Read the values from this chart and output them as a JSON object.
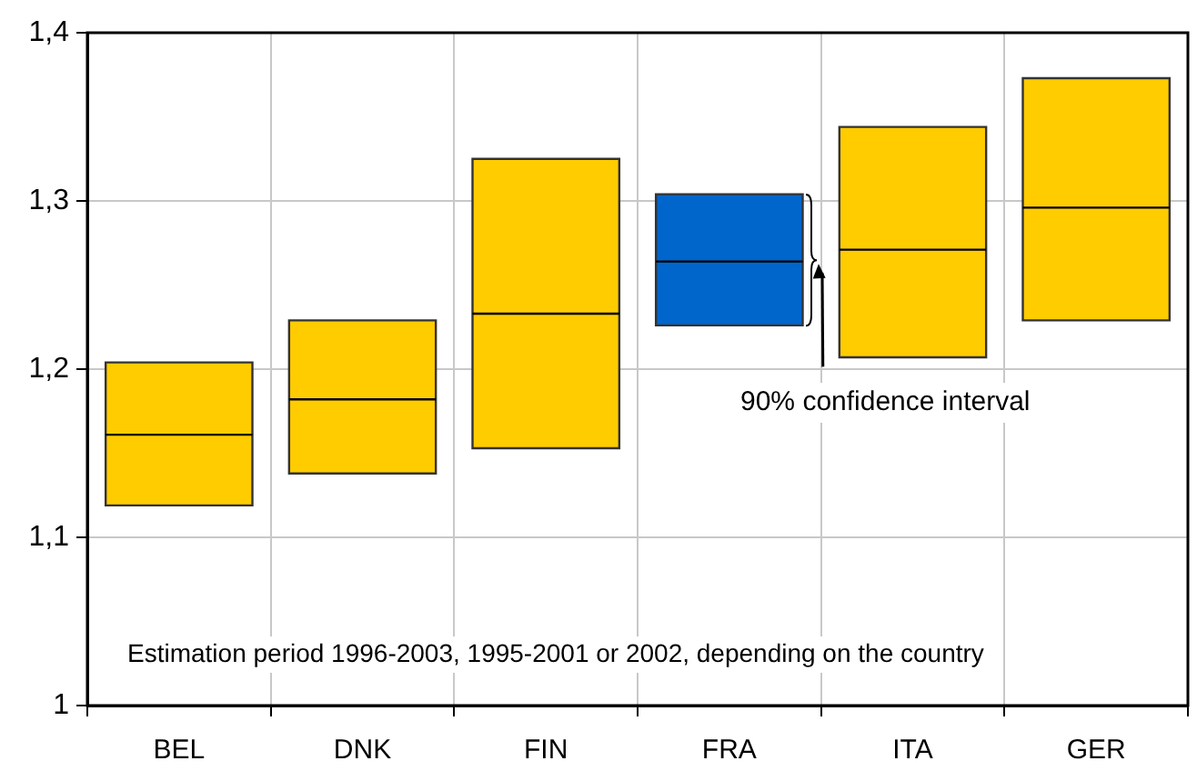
{
  "chart_data": {
    "type": "box",
    "categories": [
      "BEL",
      "DNK",
      "FIN",
      "FRA",
      "ITA",
      "GER"
    ],
    "boxes": [
      {
        "low": 1.119,
        "q1": 1.119,
        "median": 1.161,
        "q3": 1.204,
        "high": 1.204
      },
      {
        "low": 1.138,
        "q1": 1.138,
        "median": 1.182,
        "q3": 1.229,
        "high": 1.229
      },
      {
        "low": 1.153,
        "q1": 1.153,
        "median": 1.233,
        "q3": 1.325,
        "high": 1.325
      },
      {
        "low": 1.226,
        "q1": 1.226,
        "median": 1.264,
        "q3": 1.304,
        "high": 1.304
      },
      {
        "low": 1.207,
        "q1": 1.207,
        "median": 1.271,
        "q3": 1.344,
        "high": 1.344
      },
      {
        "low": 1.229,
        "q1": 1.229,
        "median": 1.296,
        "q3": 1.373,
        "high": 1.373
      }
    ],
    "colors": [
      "#ffcc00",
      "#ffcc00",
      "#ffcc00",
      "#0066cc",
      "#ffcc00",
      "#ffcc00"
    ],
    "ylim": [
      1,
      1.4
    ],
    "yticks": [
      {
        "value": 1,
        "label": "1"
      },
      {
        "value": 1.1,
        "label": "1,1"
      },
      {
        "value": 1.2,
        "label": "1,2"
      },
      {
        "value": 1.3,
        "label": "1,3"
      },
      {
        "value": 1.4,
        "label": "1,4"
      }
    ],
    "grid": true,
    "annotations": [
      "Estimation period 1996-2003, 1995-2001 or 2002, depending on the country",
      "90% confidence interval"
    ]
  }
}
